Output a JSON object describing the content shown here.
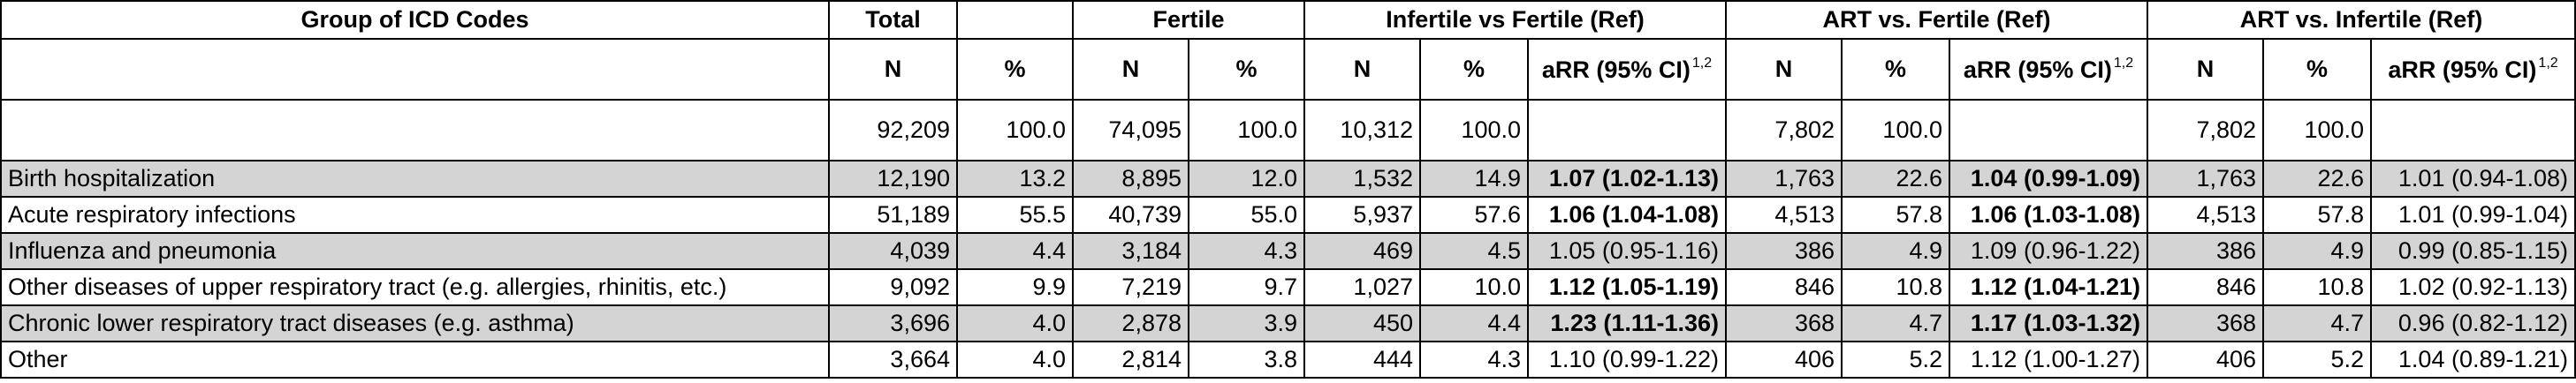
{
  "headers": {
    "group": "Group of ICD Codes",
    "total": "Total",
    "fertile": "Fertile",
    "infertile_vs_fertile": "Infertile vs Fertile (Ref)",
    "art_vs_fertile": "ART vs. Fertile (Ref)",
    "art_vs_infertile": "ART vs. Infertile (Ref)"
  },
  "subheaders": {
    "n": "N",
    "pct": "%",
    "arr": "aRR (95% CI)",
    "arr_sup": "1,2"
  },
  "totals": {
    "total_n": "92,209",
    "total_pct": "100.0",
    "fertile_n": "74,095",
    "fertile_pct": "100.0",
    "infertile_n": "10,312",
    "infertile_pct": "100.0",
    "art_n": "7,802",
    "art_pct": "100.0",
    "art2_n": "7,802",
    "art2_pct": "100.0"
  },
  "rows": [
    {
      "label": "Birth hospitalization",
      "total_n": "12,190",
      "total_pct": "13.2",
      "fertile_n": "8,895",
      "fertile_pct": "12.0",
      "infertile_n": "1,532",
      "infertile_pct": "14.9",
      "infertile_arr": "1.07 (1.02-1.13)",
      "art_n": "1,763",
      "art_pct": "22.6",
      "art_arr": "1.04 (0.99-1.09)",
      "art2_n": "1,763",
      "art2_pct": "22.6",
      "art2_arr": "1.01 (0.94-1.08)"
    },
    {
      "label": "Acute respiratory infections",
      "total_n": "51,189",
      "total_pct": "55.5",
      "fertile_n": "40,739",
      "fertile_pct": "55.0",
      "infertile_n": "5,937",
      "infertile_pct": "57.6",
      "infertile_arr": "1.06 (1.04-1.08)",
      "art_n": "4,513",
      "art_pct": "57.8",
      "art_arr": "1.06 (1.03-1.08)",
      "art2_n": "4,513",
      "art2_pct": "57.8",
      "art2_arr": "1.01 (0.99-1.04)"
    },
    {
      "label": "Influenza and pneumonia",
      "total_n": "4,039",
      "total_pct": "4.4",
      "fertile_n": "3,184",
      "fertile_pct": "4.3",
      "infertile_n": "469",
      "infertile_pct": "4.5",
      "infertile_arr": "1.05 (0.95-1.16)",
      "art_n": "386",
      "art_pct": "4.9",
      "art_arr": "1.09 (0.96-1.22)",
      "art2_n": "386",
      "art2_pct": "4.9",
      "art2_arr": "0.99 (0.85-1.15)"
    },
    {
      "label": "Other diseases of upper respiratory tract (e.g. allergies, rhinitis, etc.)",
      "total_n": "9,092",
      "total_pct": "9.9",
      "fertile_n": "7,219",
      "fertile_pct": "9.7",
      "infertile_n": "1,027",
      "infertile_pct": "10.0",
      "infertile_arr": "1.12 (1.05-1.19)",
      "art_n": "846",
      "art_pct": "10.8",
      "art_arr": "1.12 (1.04-1.21)",
      "art2_n": "846",
      "art2_pct": "10.8",
      "art2_arr": "1.02 (0.92-1.13)"
    },
    {
      "label": "Chronic lower respiratory tract diseases (e.g. asthma)",
      "total_n": "3,696",
      "total_pct": "4.0",
      "fertile_n": "2,878",
      "fertile_pct": "3.9",
      "infertile_n": "450",
      "infertile_pct": "4.4",
      "infertile_arr": "1.23 (1.11-1.36)",
      "art_n": "368",
      "art_pct": "4.7",
      "art_arr": "1.17 (1.03-1.32)",
      "art2_n": "368",
      "art2_pct": "4.7",
      "art2_arr": "0.96 (0.82-1.12)"
    },
    {
      "label": "Other",
      "total_n": "3,664",
      "total_pct": "4.0",
      "fertile_n": "2,814",
      "fertile_pct": "3.8",
      "infertile_n": "444",
      "infertile_pct": "4.3",
      "infertile_arr": "1.10 (0.99-1.22)",
      "art_n": "406",
      "art_pct": "5.2",
      "art_arr": "1.12 (1.00-1.27)",
      "art2_n": "406",
      "art2_pct": "5.2",
      "art2_arr": "1.04 (0.89-1.21)"
    }
  ]
}
